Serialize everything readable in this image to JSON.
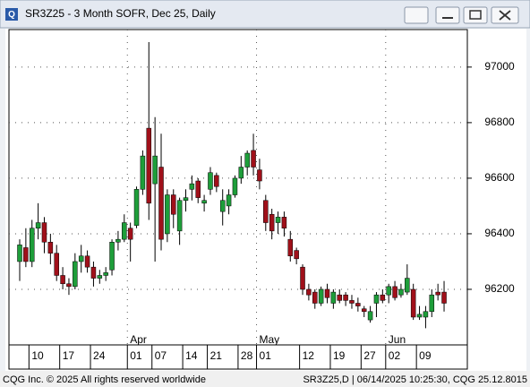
{
  "window_title": "SR3Z25 - 3 Month SOFR, Dec 25, Daily",
  "footer_left": "CQG Inc. © 2025 All rights reserved worldwide",
  "footer_right": "SR3Z25,D | 06/14/2025 10:25:30, CQG 25.12.8015",
  "chart_data": {
    "type": "candlestick",
    "title": "SR3Z25 - 3 Month SOFR, Dec 25, Daily",
    "categories": [
      null,
      null,
      "10",
      null,
      null,
      null,
      null,
      "17",
      null,
      null,
      null,
      null,
      "24",
      null,
      null,
      null,
      null,
      null,
      "01",
      null,
      null,
      null,
      "07",
      null,
      null,
      null,
      null,
      "14",
      null,
      null,
      null,
      "21",
      null,
      null,
      null,
      null,
      "28",
      null,
      null,
      "01",
      null,
      null,
      null,
      null,
      null,
      null,
      "12",
      null,
      null,
      null,
      null,
      "19",
      null,
      null,
      null,
      null,
      "27",
      null,
      null,
      null,
      "02",
      null,
      null,
      null,
      null,
      "09",
      null,
      null,
      null,
      null
    ],
    "months": [
      null,
      null,
      null,
      null,
      null,
      null,
      null,
      null,
      null,
      null,
      null,
      null,
      null,
      null,
      null,
      null,
      null,
      null,
      "Apr",
      null,
      null,
      null,
      null,
      null,
      null,
      null,
      null,
      null,
      null,
      null,
      null,
      null,
      null,
      null,
      null,
      null,
      null,
      null,
      null,
      "May",
      null,
      null,
      null,
      null,
      null,
      null,
      null,
      null,
      null,
      null,
      null,
      null,
      null,
      null,
      null,
      null,
      null,
      null,
      null,
      null,
      "Jun",
      null,
      null,
      null,
      null,
      null,
      null,
      null,
      null,
      null
    ],
    "open": [
      96300,
      96350,
      96300,
      96420,
      96440,
      96370,
      96330,
      96250,
      96220,
      96210,
      96300,
      96320,
      96280,
      96240,
      96250,
      96270,
      96370,
      96380,
      96420,
      96430,
      96560,
      96780,
      96580,
      96640,
      96400,
      96540,
      96410,
      96520,
      96560,
      96590,
      96510,
      96560,
      96610,
      96480,
      96500,
      96540,
      96600,
      96640,
      96700,
      96630,
      96520,
      96470,
      96440,
      96460,
      96380,
      96340,
      96280,
      96200,
      96190,
      96150,
      96200,
      96150,
      96180,
      96180,
      96160,
      96150,
      96130,
      96090,
      96150,
      96180,
      96180,
      96210,
      96180,
      96190,
      96200,
      96100,
      96100,
      96120,
      96190,
      96190
    ],
    "high": [
      96380,
      96420,
      96450,
      96510,
      96460,
      96400,
      96360,
      96280,
      96240,
      96330,
      96360,
      96340,
      96300,
      96270,
      96280,
      96380,
      96410,
      96470,
      96440,
      96570,
      96700,
      97090,
      96820,
      96760,
      96560,
      96560,
      96530,
      96560,
      96610,
      96600,
      96540,
      96640,
      96620,
      96560,
      96560,
      96610,
      96680,
      96700,
      96760,
      96670,
      96540,
      96490,
      96480,
      96480,
      96410,
      96350,
      96290,
      96220,
      96200,
      96210,
      96220,
      96200,
      96200,
      96190,
      96180,
      96170,
      96140,
      96140,
      96190,
      96200,
      96220,
      96230,
      96220,
      96290,
      96220,
      96140,
      96140,
      96200,
      96220,
      96230
    ],
    "low": [
      96230,
      96280,
      96280,
      96380,
      96330,
      96290,
      96230,
      96200,
      96180,
      96200,
      96260,
      96260,
      96210,
      96220,
      96230,
      96250,
      96340,
      96370,
      96300,
      96420,
      96540,
      96450,
      96300,
      96340,
      96370,
      96420,
      96360,
      96480,
      96520,
      96510,
      96480,
      96540,
      96550,
      96430,
      96470,
      96530,
      96580,
      96610,
      96610,
      96560,
      96410,
      96380,
      96400,
      96390,
      96300,
      96290,
      96180,
      96160,
      96130,
      96140,
      96150,
      96130,
      96150,
      96140,
      96130,
      96120,
      96100,
      96080,
      96100,
      96150,
      96150,
      96160,
      96170,
      96180,
      96090,
      96090,
      96060,
      96100,
      96160,
      96120
    ],
    "close": [
      96360,
      96300,
      96420,
      96440,
      96370,
      96330,
      96250,
      96220,
      96210,
      96300,
      96320,
      96280,
      96240,
      96250,
      96260,
      96370,
      96380,
      96440,
      96380,
      96560,
      96680,
      96510,
      96680,
      96380,
      96540,
      96470,
      96520,
      96530,
      96580,
      96530,
      96520,
      96620,
      96570,
      96520,
      96540,
      96600,
      96640,
      96690,
      96640,
      96590,
      96440,
      96410,
      96460,
      96420,
      96320,
      96310,
      96200,
      96180,
      96150,
      96200,
      96170,
      96190,
      96160,
      96160,
      96150,
      96140,
      96120,
      96120,
      96180,
      96160,
      96210,
      96170,
      96200,
      96240,
      96100,
      96110,
      96120,
      96180,
      96180,
      96150
    ],
    "up_color": "#1e9e3a",
    "down_color": "#a0101a",
    "ylim": [
      96000,
      97135
    ],
    "yticks": [
      96200,
      96400,
      96600,
      96800,
      97000
    ],
    "grid": true
  }
}
